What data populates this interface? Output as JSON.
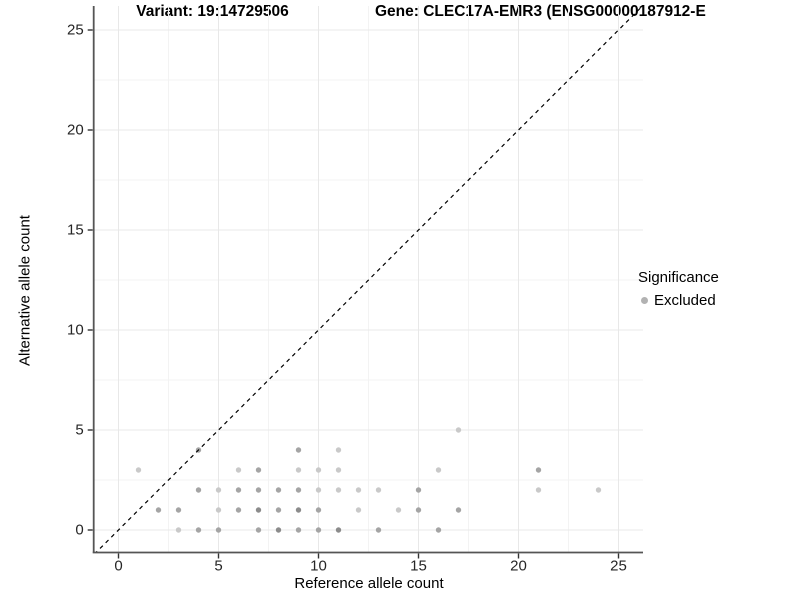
{
  "chart_data": {
    "type": "scatter",
    "titles": {
      "variant": "Variant: 19:14729506",
      "gene": "Gene: CLEC17A-EMR3 (ENSG00000187912-E"
    },
    "xlabel": "Reference allele count",
    "ylabel": "Alternative allele count",
    "xlim": [
      0,
      25
    ],
    "ylim": [
      0,
      25
    ],
    "x_ticks": [
      0,
      5,
      10,
      15,
      20,
      25
    ],
    "y_ticks": [
      0,
      5,
      10,
      15,
      20,
      25
    ],
    "grid": {
      "major": true,
      "minor": true
    },
    "identity_line": {
      "style": "dashed",
      "slope": 1,
      "intercept": 0,
      "color": "#000000"
    },
    "legend": {
      "title": "Significance",
      "position": "right",
      "items": [
        {
          "label": "Excluded",
          "marker_color": "#b2b2b2"
        }
      ]
    },
    "point_shade_colors": {
      "l": "#c9c9c9",
      "m": "#a4a4a4",
      "d": "#8b8b8b"
    },
    "points": [
      [
        3,
        0,
        "l"
      ],
      [
        4,
        0,
        "m"
      ],
      [
        5,
        0,
        "m"
      ],
      [
        7,
        0,
        "m"
      ],
      [
        8,
        0,
        "d"
      ],
      [
        9,
        0,
        "m"
      ],
      [
        10,
        0,
        "m"
      ],
      [
        11,
        0,
        "d"
      ],
      [
        13,
        0,
        "m"
      ],
      [
        16,
        0,
        "m"
      ],
      [
        2,
        1,
        "m"
      ],
      [
        3,
        1,
        "m"
      ],
      [
        5,
        1,
        "l"
      ],
      [
        6,
        1,
        "m"
      ],
      [
        7,
        1,
        "d"
      ],
      [
        8,
        1,
        "m"
      ],
      [
        9,
        1,
        "d"
      ],
      [
        10,
        1,
        "m"
      ],
      [
        12,
        1,
        "l"
      ],
      [
        14,
        1,
        "l"
      ],
      [
        15,
        1,
        "m"
      ],
      [
        17,
        1,
        "m"
      ],
      [
        4,
        2,
        "m"
      ],
      [
        5,
        2,
        "l"
      ],
      [
        6,
        2,
        "m"
      ],
      [
        7,
        2,
        "m"
      ],
      [
        8,
        2,
        "m"
      ],
      [
        9,
        2,
        "m"
      ],
      [
        10,
        2,
        "l"
      ],
      [
        11,
        2,
        "l"
      ],
      [
        12,
        2,
        "l"
      ],
      [
        13,
        2,
        "l"
      ],
      [
        15,
        2,
        "m"
      ],
      [
        21,
        2,
        "l"
      ],
      [
        24,
        2,
        "l"
      ],
      [
        1,
        3,
        "l"
      ],
      [
        6,
        3,
        "l"
      ],
      [
        7,
        3,
        "m"
      ],
      [
        9,
        3,
        "l"
      ],
      [
        10,
        3,
        "l"
      ],
      [
        11,
        3,
        "l"
      ],
      [
        16,
        3,
        "l"
      ],
      [
        21,
        3,
        "m"
      ],
      [
        4,
        4,
        "m"
      ],
      [
        9,
        4,
        "m"
      ],
      [
        11,
        4,
        "l"
      ],
      [
        17,
        5,
        "l"
      ]
    ],
    "colors": {
      "grid_major": "#e8e8e8",
      "grid_minor": "#f3f3f3",
      "axis_line": "#555555",
      "tick_text": "#262626"
    }
  }
}
